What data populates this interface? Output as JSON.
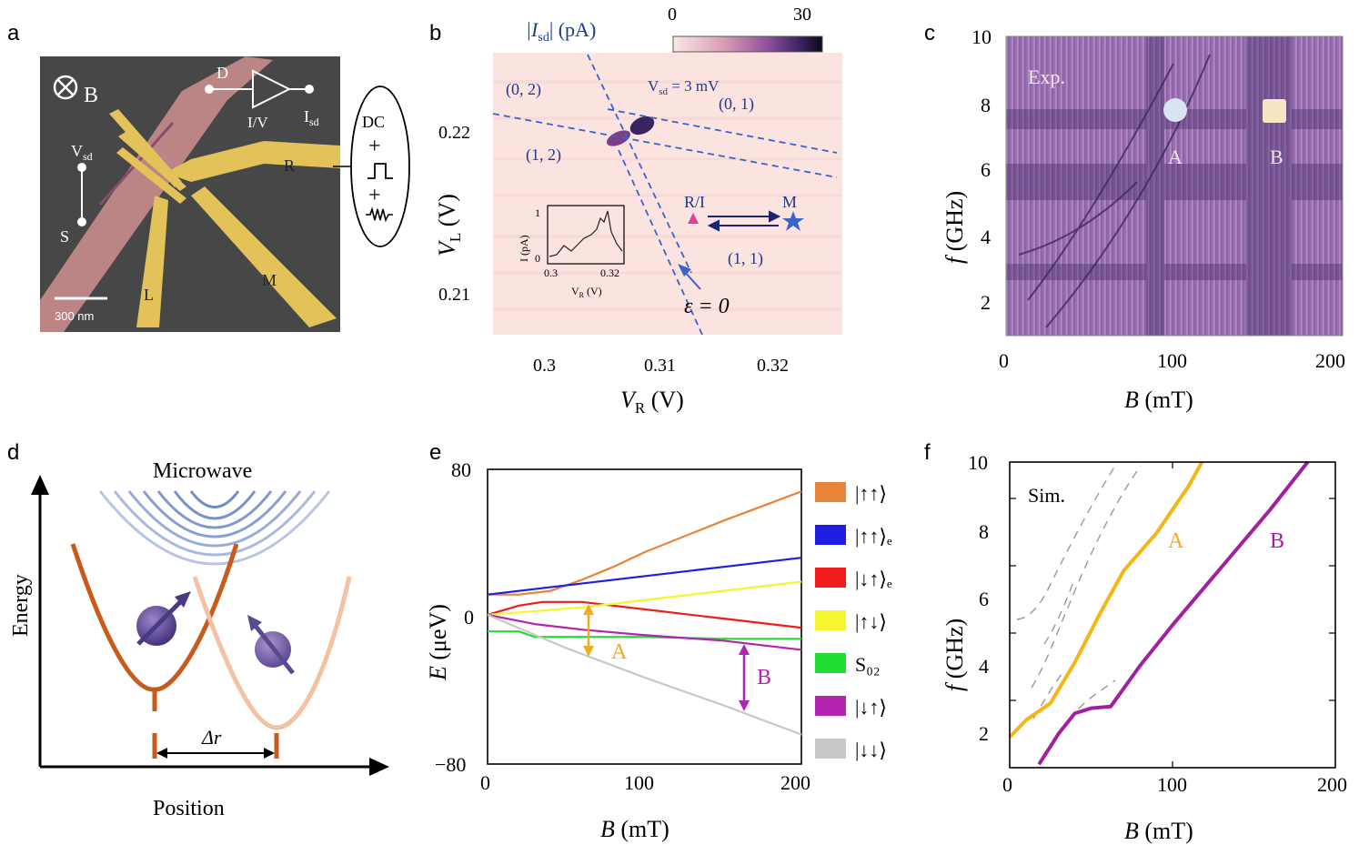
{
  "figure": {
    "panel_labels": [
      "a",
      "b",
      "c",
      "d",
      "e",
      "f"
    ]
  },
  "panel_a": {
    "gates": {
      "B": "B",
      "D": "D",
      "R": "R",
      "L": "L",
      "M": "M",
      "S": "S"
    },
    "vsd_label": "V",
    "vsd_sub": "sd",
    "isd_label": "I",
    "isd_sub": "sd",
    "amp_label": "I/V",
    "dc_label": "DC",
    "plus1": "+",
    "plus2": "+",
    "scalebar": "300 nm",
    "colors": {
      "gold": "#e3c25a",
      "pink": "#c98c8c",
      "bg": "#4a4a4a"
    }
  },
  "panel_b": {
    "colorbar_title_pre": "|I",
    "colorbar_title_sub": "sd",
    "colorbar_title_post": "| (pA)",
    "colorbar_min": "0",
    "colorbar_max": "30",
    "vsd_note": "V",
    "vsd_note_sub": "sd",
    "vsd_note_val": " = 3 mV",
    "regions": [
      "(0, 2)",
      "(0, 1)",
      "(1, 2)",
      "(1, 1)"
    ],
    "ri_label": "R/I",
    "m_label": "M",
    "eps_label": "ε =  0",
    "xlabel": "V",
    "xlabel_sub": "R",
    "xlabel_unit": " (V)",
    "ylabel": "V",
    "ylabel_sub": "L",
    "ylabel_unit": " (V)",
    "xticks": [
      "0.3",
      "0.31",
      "0.32"
    ],
    "yticks": [
      "0.22",
      "0.21"
    ],
    "inset": {
      "ylabel": "I (pA)",
      "yticks": [
        "1",
        "0"
      ],
      "xticks": [
        "0.3",
        "0.32"
      ],
      "xlabel": "V",
      "xlabel_sub": "R",
      "xlabel_unit": " (V)"
    }
  },
  "panel_c": {
    "note": "Exp.",
    "marker_a": "A",
    "marker_b": "B",
    "xlabel": "B",
    "xlabel_unit": " (mT)",
    "ylabel": "f",
    "ylabel_unit": " (GHz)",
    "xticks": [
      "0",
      "100",
      "200"
    ],
    "yticks": [
      "10",
      "8",
      "6",
      "4",
      "2"
    ]
  },
  "panel_d": {
    "microwave": "Microwave",
    "energy": "Energy",
    "position": "Position",
    "dr": "Δr"
  },
  "panel_e": {
    "annot_a": "A",
    "annot_b": "B",
    "xlabel": "B",
    "xlabel_unit": " (mT)",
    "ylabel": "E",
    "ylabel_unit": " (μeV)",
    "xticks": [
      "0",
      "100",
      "200"
    ],
    "yticks": [
      "80",
      "0",
      "−80"
    ],
    "legend": [
      {
        "label": "|↑↑⟩",
        "color": "#e8833a"
      },
      {
        "label": "|↑↑⟩ₑ",
        "color": "#1d1ee0"
      },
      {
        "label": "|↓↑⟩ₑ",
        "color": "#ee1c1c"
      },
      {
        "label": "|↑↓⟩",
        "color": "#f5f530"
      },
      {
        "label": "S₀₂",
        "color": "#22dd33"
      },
      {
        "label": "|↓↑⟩",
        "color": "#b324b3"
      },
      {
        "label": "|↓↓⟩",
        "color": "#c8c8c8"
      }
    ]
  },
  "panel_f": {
    "note": "Sim.",
    "label_a": "A",
    "label_b": "B",
    "xlabel": "B",
    "xlabel_unit": " (mT)",
    "ylabel": "f",
    "ylabel_unit": " (GHz)",
    "xticks": [
      "0",
      "100",
      "200"
    ],
    "yticks": [
      "10",
      "8",
      "6",
      "4",
      "2"
    ]
  },
  "chart_data": [
    {
      "panel": "e",
      "type": "line",
      "xlabel": "B (mT)",
      "ylabel": "E (μeV)",
      "xlim": [
        0,
        200
      ],
      "ylim": [
        -80,
        80
      ],
      "series": [
        {
          "name": "|↑↑⟩",
          "x": [
            0,
            20,
            40,
            60,
            80,
            100,
            150,
            200
          ],
          "y": [
            12,
            12,
            14,
            20,
            27,
            35,
            52,
            68
          ]
        },
        {
          "name": "|↑↑⟩e",
          "x": [
            0,
            50,
            100,
            150,
            200
          ],
          "y": [
            12,
            17,
            22,
            27,
            32
          ]
        },
        {
          "name": "|↓↑⟩e",
          "x": [
            0,
            20,
            35,
            60,
            100,
            150,
            200
          ],
          "y": [
            1,
            6,
            8,
            8,
            4,
            -1,
            -6
          ]
        },
        {
          "name": "|↑↓⟩",
          "x": [
            0,
            30,
            60,
            100,
            150,
            200
          ],
          "y": [
            1,
            3,
            5,
            9,
            14,
            19
          ]
        },
        {
          "name": "S02",
          "x": [
            0,
            20,
            30,
            60,
            100,
            150,
            200
          ],
          "y": [
            -8,
            -8,
            -11,
            -11,
            -11,
            -12,
            -12
          ]
        },
        {
          "name": "|↓↑⟩",
          "x": [
            0,
            30,
            60,
            100,
            150,
            200
          ],
          "y": [
            1,
            -4,
            -7,
            -10,
            -13,
            -18
          ]
        },
        {
          "name": "|↓↓⟩",
          "x": [
            0,
            50,
            100,
            150,
            200
          ],
          "y": [
            1,
            -17,
            -33,
            -48,
            -64
          ]
        }
      ]
    },
    {
      "panel": "f",
      "type": "line",
      "xlabel": "B (mT)",
      "ylabel": "f (GHz)",
      "xlim": [
        0,
        200
      ],
      "ylim": [
        1,
        10
      ],
      "series": [
        {
          "name": "A",
          "x": [
            0,
            10,
            25,
            40,
            55,
            70,
            90,
            110,
            118
          ],
          "y": [
            1.9,
            2.4,
            2.9,
            4.1,
            5.5,
            6.8,
            7.9,
            9.3,
            10
          ]
        },
        {
          "name": "B",
          "x": [
            18,
            30,
            40,
            50,
            62,
            80,
            100,
            130,
            160,
            183
          ],
          "y": [
            1.1,
            2.0,
            2.6,
            2.75,
            2.8,
            4.0,
            5.2,
            6.9,
            8.6,
            10
          ]
        }
      ]
    }
  ]
}
